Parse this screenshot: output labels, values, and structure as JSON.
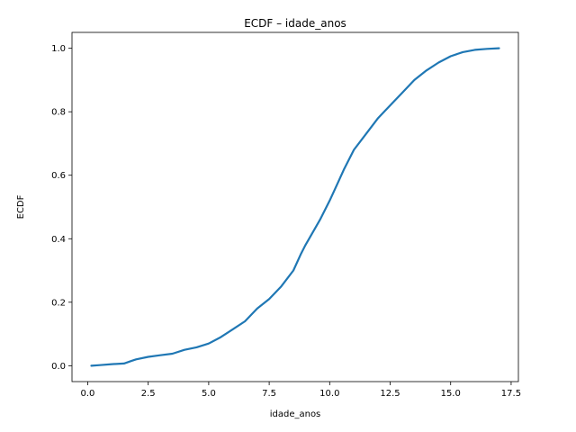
{
  "chart_data": {
    "type": "line",
    "title": "ECDF – idade_anos",
    "xlabel": "idade_anos",
    "ylabel": "ECDF",
    "xlim": [
      -0.65,
      17.8
    ],
    "ylim": [
      -0.05,
      1.05
    ],
    "xticks": [
      0.0,
      2.5,
      5.0,
      7.5,
      10.0,
      12.5,
      15.0,
      17.5
    ],
    "xtick_labels": [
      "0.0",
      "2.5",
      "5.0",
      "7.5",
      "10.0",
      "12.5",
      "15.0",
      "17.5"
    ],
    "yticks": [
      0.0,
      0.2,
      0.4,
      0.6,
      0.8,
      1.0
    ],
    "ytick_labels": [
      "0.0",
      "0.2",
      "0.4",
      "0.6",
      "0.8",
      "1.0"
    ],
    "grid": false,
    "legend": "none",
    "color": "#1f77b4",
    "series": [
      {
        "x": [
          0.15,
          0.5,
          1.0,
          1.5,
          1.8,
          2.0,
          2.5,
          3.0,
          3.5,
          4.0,
          4.5,
          5.0,
          5.5,
          6.0,
          6.5,
          7.0,
          7.5,
          8.0,
          8.5,
          8.8,
          9.0,
          9.3,
          9.6,
          10.0,
          10.3,
          10.6,
          11.0,
          11.5,
          12.0,
          12.5,
          13.0,
          13.5,
          14.0,
          14.5,
          15.0,
          15.5,
          16.0,
          16.5,
          17.0
        ],
        "y": [
          0.0,
          0.002,
          0.005,
          0.007,
          0.015,
          0.02,
          0.028,
          0.033,
          0.038,
          0.05,
          0.058,
          0.07,
          0.09,
          0.115,
          0.14,
          0.18,
          0.21,
          0.25,
          0.3,
          0.35,
          0.38,
          0.42,
          0.46,
          0.52,
          0.57,
          0.62,
          0.68,
          0.73,
          0.78,
          0.82,
          0.86,
          0.9,
          0.93,
          0.955,
          0.975,
          0.988,
          0.995,
          0.998,
          1.0
        ]
      }
    ]
  }
}
